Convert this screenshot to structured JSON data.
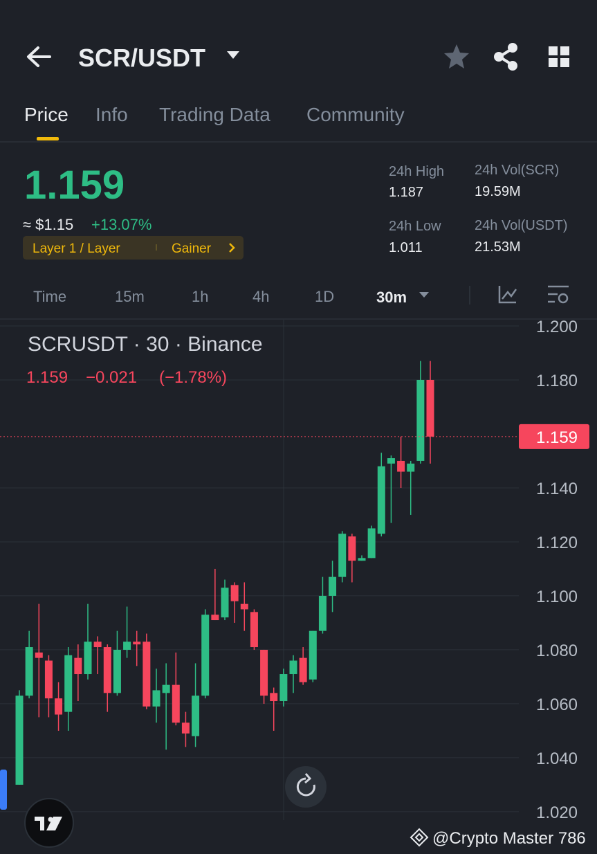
{
  "header": {
    "pair": "SCR/USDT"
  },
  "tabs": [
    "Price",
    "Info",
    "Trading Data",
    "Community"
  ],
  "summary": {
    "price": "1.159",
    "usd_price": "≈ $1.15",
    "change": "+13.07%",
    "tags": [
      "Layer 1 / Layer",
      "Gainer"
    ],
    "stats": [
      {
        "label": "24h High",
        "value": "1.187"
      },
      {
        "label": "24h Vol(SCR)",
        "value": "19.59M"
      },
      {
        "label": "24h Low",
        "value": "1.011"
      },
      {
        "label": "24h Vol(USDT)",
        "value": "21.53M"
      }
    ]
  },
  "intervals": [
    "Time",
    "15m",
    "1h",
    "4h",
    "1D",
    "30m"
  ],
  "chart_data": {
    "type": "candlestick",
    "title": "SCRUSDT · 30 · Binance",
    "legend_values": [
      "1.159",
      "−0.021",
      "(−1.78%)"
    ],
    "up_color": "#2ebd85",
    "down_color": "#f6465d",
    "open": [
      1.03,
      1.063,
      1.079,
      1.076,
      1.062,
      1.057,
      1.077,
      1.071,
      1.083,
      1.081,
      1.064,
      1.08,
      1.083,
      1.083,
      1.059,
      1.064,
      1.067,
      1.053,
      1.048,
      1.063,
      1.093,
      1.092,
      1.104,
      1.097,
      1.094,
      1.08,
      1.064,
      1.061,
      1.071,
      1.077,
      1.069,
      1.087,
      1.1,
      1.107,
      1.122,
      1.113,
      1.114,
      1.123,
      1.149,
      1.15,
      1.146,
      1.15,
      1.18
    ],
    "high": [
      1.065,
      1.087,
      1.097,
      1.078,
      1.068,
      1.081,
      1.082,
      1.097,
      1.085,
      1.082,
      1.087,
      1.096,
      1.087,
      1.086,
      1.073,
      1.075,
      1.079,
      1.057,
      1.075,
      1.095,
      1.11,
      1.106,
      1.105,
      1.105,
      1.095,
      1.08,
      1.066,
      1.073,
      1.078,
      1.081,
      1.087,
      1.107,
      1.113,
      1.124,
      1.123,
      1.115,
      1.126,
      1.153,
      1.152,
      1.159,
      1.15,
      1.187,
      1.187
    ],
    "low": [
      1.03,
      1.062,
      1.055,
      1.055,
      1.05,
      1.05,
      1.061,
      1.069,
      1.071,
      1.057,
      1.063,
      1.077,
      1.074,
      1.058,
      1.053,
      1.043,
      1.052,
      1.044,
      1.044,
      1.062,
      1.091,
      1.091,
      1.09,
      1.087,
      1.08,
      1.06,
      1.05,
      1.059,
      1.064,
      1.067,
      1.068,
      1.086,
      1.094,
      1.105,
      1.105,
      1.113,
      1.114,
      1.122,
      1.127,
      1.14,
      1.13,
      1.149,
      1.149
    ],
    "close": [
      1.063,
      1.081,
      1.077,
      1.062,
      1.056,
      1.078,
      1.071,
      1.083,
      1.081,
      1.064,
      1.08,
      1.083,
      1.082,
      1.059,
      1.065,
      1.067,
      1.053,
      1.049,
      1.063,
      1.093,
      1.091,
      1.103,
      1.098,
      1.095,
      1.081,
      1.063,
      1.061,
      1.071,
      1.076,
      1.068,
      1.087,
      1.1,
      1.107,
      1.123,
      1.113,
      1.114,
      1.125,
      1.148,
      1.151,
      1.146,
      1.149,
      1.18,
      1.159
    ],
    "last_price": 1.159,
    "ylim": [
      1.0169,
      1.2023
    ],
    "yticks": [
      {
        "value": 1.2,
        "label": "1.200"
      },
      {
        "value": 1.18,
        "label": "1.180"
      },
      {
        "value": 1.14,
        "label": "1.140"
      },
      {
        "value": 1.12,
        "label": "1.120"
      },
      {
        "value": 1.1,
        "label": "1.100"
      },
      {
        "value": 1.08,
        "label": "1.080"
      },
      {
        "value": 1.06,
        "label": "1.060"
      },
      {
        "value": 1.04,
        "label": "1.040"
      },
      {
        "value": 1.02,
        "label": "1.020"
      }
    ],
    "grid": true
  },
  "watermark": "@Crypto Master 786"
}
